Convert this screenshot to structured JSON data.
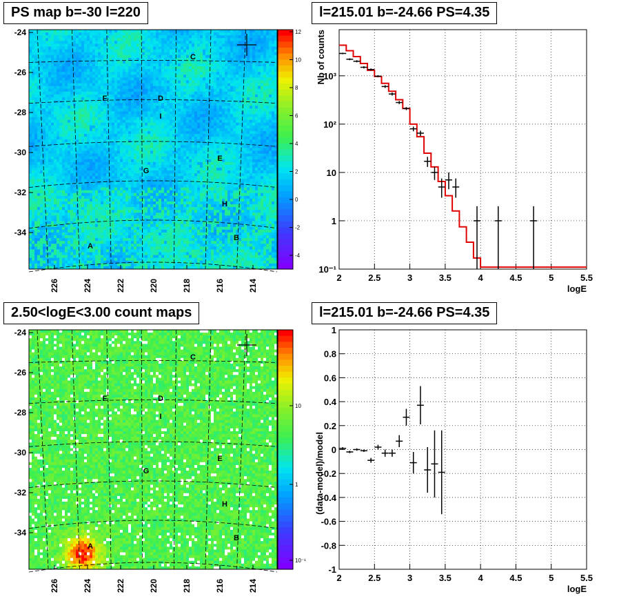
{
  "panels": {
    "tl_title": "PS map b=-30 l=220",
    "tr_title": "l=215.01 b=-24.66 PS=4.35",
    "bl_title": "2.50<logE<3.00 count maps",
    "br_title": "l=215.01 b=-24.66 PS=4.35"
  },
  "chart_data": [
    {
      "type": "heatmap",
      "xlabel": "",
      "ylabel": "",
      "x_ticks": [
        "226",
        "224",
        "222",
        "220",
        "218",
        "216",
        "214"
      ],
      "y_ticks": [
        "-24",
        "-26",
        "-28",
        "-30",
        "-32",
        "-34"
      ],
      "colorbar_ticks": [
        "12",
        "10",
        "8",
        "6",
        "4",
        "2",
        "0",
        "-2",
        "-4"
      ],
      "zrange": [
        -5,
        12
      ],
      "sources": [
        {
          "label": "A",
          "l": 223.8,
          "b": -34.6
        },
        {
          "label": "B",
          "l": 215.1,
          "b": -34.3
        },
        {
          "label": "C",
          "l": 217.9,
          "b": -25.5
        },
        {
          "label": "D",
          "l": 219.6,
          "b": -27.5
        },
        {
          "label": "E",
          "l": 216.2,
          "b": -30.5
        },
        {
          "label": "F",
          "l": 223.1,
          "b": -27.5
        },
        {
          "label": "G",
          "l": 220.5,
          "b": -31.2
        },
        {
          "label": "H",
          "l": 216.0,
          "b": -32.9
        },
        {
          "label": "I",
          "l": 219.6,
          "b": -28.3
        }
      ]
    },
    {
      "type": "line",
      "xlabel": "logE",
      "ylabel": "Nb of counts",
      "xlim": [
        2,
        5.5
      ],
      "ylim": [
        0.1,
        9000
      ],
      "yscale": "log",
      "x_ticks": [
        "2",
        "2.5",
        "3",
        "3.5",
        "4",
        "4.5",
        "5",
        "5.5"
      ],
      "y_ticks": [
        "10⁻¹",
        "1",
        "10",
        "10²",
        "10³"
      ],
      "data_points": [
        {
          "x": 2.05,
          "y": 2900,
          "lo": 2800,
          "hi": 3000
        },
        {
          "x": 2.15,
          "y": 2200,
          "lo": 2100,
          "hi": 2300
        },
        {
          "x": 2.25,
          "y": 2000,
          "lo": 1900,
          "hi": 2100
        },
        {
          "x": 2.35,
          "y": 1500,
          "lo": 1420,
          "hi": 1580
        },
        {
          "x": 2.45,
          "y": 1350,
          "lo": 1280,
          "hi": 1420
        },
        {
          "x": 2.55,
          "y": 980,
          "lo": 930,
          "hi": 1030
        },
        {
          "x": 2.65,
          "y": 600,
          "lo": 560,
          "hi": 640
        },
        {
          "x": 2.75,
          "y": 420,
          "lo": 390,
          "hi": 450
        },
        {
          "x": 2.85,
          "y": 280,
          "lo": 260,
          "hi": 300
        },
        {
          "x": 2.95,
          "y": 210,
          "lo": 195,
          "hi": 225
        },
        {
          "x": 3.05,
          "y": 80,
          "lo": 71,
          "hi": 89
        },
        {
          "x": 3.15,
          "y": 65,
          "lo": 57,
          "hi": 73
        },
        {
          "x": 3.25,
          "y": 17,
          "lo": 13,
          "hi": 21
        },
        {
          "x": 3.35,
          "y": 10,
          "lo": 7,
          "hi": 13
        },
        {
          "x": 3.45,
          "y": 5,
          "lo": 3,
          "hi": 7.5
        },
        {
          "x": 3.55,
          "y": 7,
          "lo": 4.5,
          "hi": 10
        },
        {
          "x": 3.65,
          "y": 5,
          "lo": 3,
          "hi": 7.5
        },
        {
          "x": 3.95,
          "y": 1,
          "lo": 0.1,
          "hi": 2
        },
        {
          "x": 4.25,
          "y": 1,
          "lo": 0.1,
          "hi": 2
        },
        {
          "x": 4.75,
          "y": 1,
          "lo": 0.1,
          "hi": 2
        }
      ],
      "model_step": [
        [
          2.0,
          4300
        ],
        [
          2.1,
          3300
        ],
        [
          2.2,
          2500
        ],
        [
          2.3,
          1800
        ],
        [
          2.4,
          1300
        ],
        [
          2.5,
          970
        ],
        [
          2.6,
          700
        ],
        [
          2.7,
          480
        ],
        [
          2.8,
          320
        ],
        [
          2.9,
          210
        ],
        [
          3.0,
          100
        ],
        [
          3.1,
          55
        ],
        [
          3.2,
          25
        ],
        [
          3.3,
          13
        ],
        [
          3.4,
          6.5
        ],
        [
          3.5,
          3.3
        ],
        [
          3.6,
          1.6
        ],
        [
          3.7,
          0.75
        ],
        [
          3.8,
          0.36
        ],
        [
          3.9,
          0.17
        ],
        [
          4.0,
          0.11
        ],
        [
          5.5,
          0.11
        ]
      ]
    },
    {
      "type": "heatmap",
      "xlabel": "",
      "ylabel": "",
      "x_ticks": [
        "226",
        "224",
        "222",
        "220",
        "218",
        "216",
        "214"
      ],
      "y_ticks": [
        "-24",
        "-26",
        "-28",
        "-30",
        "-32",
        "-34"
      ],
      "colorbar_ticks": [
        "10",
        "1",
        "10⁻¹"
      ],
      "zscale": "log"
    },
    {
      "type": "scatter",
      "xlabel": "logE",
      "ylabel": "(data-model)/model",
      "xlim": [
        2,
        5.5
      ],
      "ylim": [
        -1,
        1
      ],
      "x_ticks": [
        "2",
        "2.5",
        "3",
        "3.5",
        "4",
        "4.5",
        "5",
        "5.5"
      ],
      "y_ticks": [
        "1",
        "0.8",
        "0.6",
        "0.4",
        "0.2",
        "0",
        "-0.2",
        "-0.4",
        "-0.6",
        "-0.8",
        "-1"
      ],
      "residuals": [
        {
          "x": 2.05,
          "y": 0.01,
          "e": 0.01
        },
        {
          "x": 2.15,
          "y": -0.02,
          "e": 0.01
        },
        {
          "x": 2.25,
          "y": 0.0,
          "e": 0.01
        },
        {
          "x": 2.35,
          "y": -0.01,
          "e": 0.01
        },
        {
          "x": 2.45,
          "y": -0.09,
          "e": 0.02
        },
        {
          "x": 2.55,
          "y": 0.02,
          "e": 0.02
        },
        {
          "x": 2.65,
          "y": -0.03,
          "e": 0.03
        },
        {
          "x": 2.75,
          "y": -0.03,
          "e": 0.03
        },
        {
          "x": 2.85,
          "y": 0.07,
          "e": 0.05
        },
        {
          "x": 2.95,
          "y": 0.27,
          "e": 0.07
        },
        {
          "x": 3.05,
          "y": -0.11,
          "e": 0.09
        },
        {
          "x": 3.15,
          "y": 0.37,
          "e": 0.16
        },
        {
          "x": 3.25,
          "y": -0.17,
          "e": 0.19
        },
        {
          "x": 3.35,
          "y": -0.12,
          "e": 0.28
        },
        {
          "x": 3.45,
          "y": -0.19,
          "e": 0.35
        }
      ]
    }
  ]
}
